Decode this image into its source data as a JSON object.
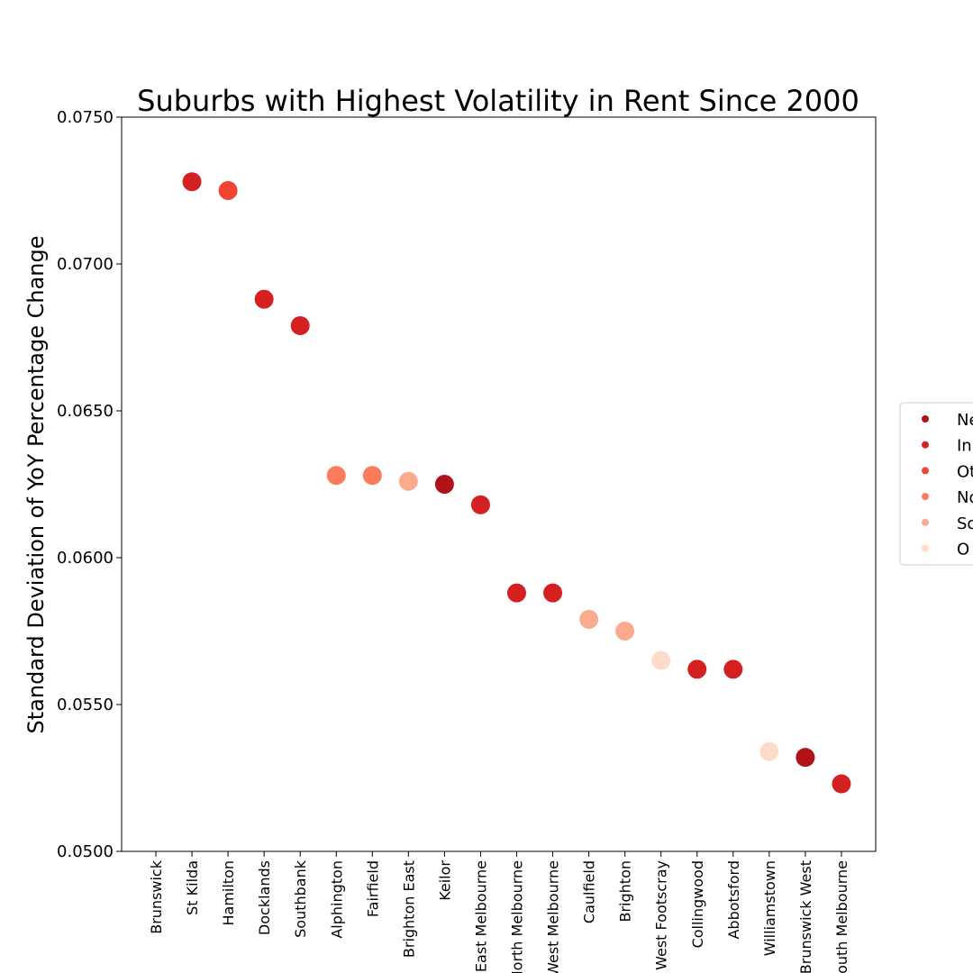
{
  "chart_data": {
    "type": "scatter",
    "title": "Suburbs with Highest Volatility in Rent Since 2000",
    "xlabel": "",
    "ylabel": "Standard Deviation of YoY Percentage Change",
    "ylim": [
      0.05,
      0.075
    ],
    "yticks": [
      "0.0500",
      "0.0550",
      "0.0600",
      "0.0650",
      "0.0700",
      "0.0750"
    ],
    "ytick_values": [
      0.05,
      0.055,
      0.06,
      0.065,
      0.07,
      0.075
    ],
    "grid": false,
    "legend_position": "right, partially cropped",
    "categories": [
      "Brunswick",
      "St Kilda",
      "Hamilton",
      "Docklands",
      "Southbank",
      "Alphington",
      "Fairfield",
      "Brighton East",
      "Keilor",
      "East Melbourne",
      "North Melbourne",
      "West Melbourne",
      "Caulfield",
      "Brighton",
      "West Footscray",
      "Collingwood",
      "Abbotsford",
      "Williamstown",
      "Brunswick West",
      "South Melbourne"
    ],
    "values": [
      null,
      0.0728,
      0.0725,
      0.0688,
      0.0679,
      0.0628,
      0.0628,
      0.0626,
      0.0625,
      0.0618,
      0.0588,
      0.0588,
      0.0579,
      0.0575,
      0.0565,
      0.0562,
      0.0562,
      0.0534,
      0.0532,
      0.0523
    ],
    "point_colors": [
      null,
      "#d42020",
      "#f14432",
      "#d42020",
      "#d42020",
      "#fb7c5c",
      "#fb7c5c",
      "#fcaa8e",
      "#b11218",
      "#d42020",
      "#d42020",
      "#d42020",
      "#fcaa8e",
      "#fcaa8e",
      "#fedbcb",
      "#d42020",
      "#d42020",
      "#fedbcb",
      "#b11218",
      "#d42020"
    ],
    "legend": [
      {
        "label": "Ne",
        "color": "#b11218"
      },
      {
        "label": "In",
        "color": "#d42020"
      },
      {
        "label": "Ot",
        "color": "#f14432"
      },
      {
        "label": "No",
        "color": "#fb7c5c"
      },
      {
        "label": "So",
        "color": "#fcaa8e"
      },
      {
        "label": "O",
        "color": "#fedbcb"
      }
    ]
  }
}
